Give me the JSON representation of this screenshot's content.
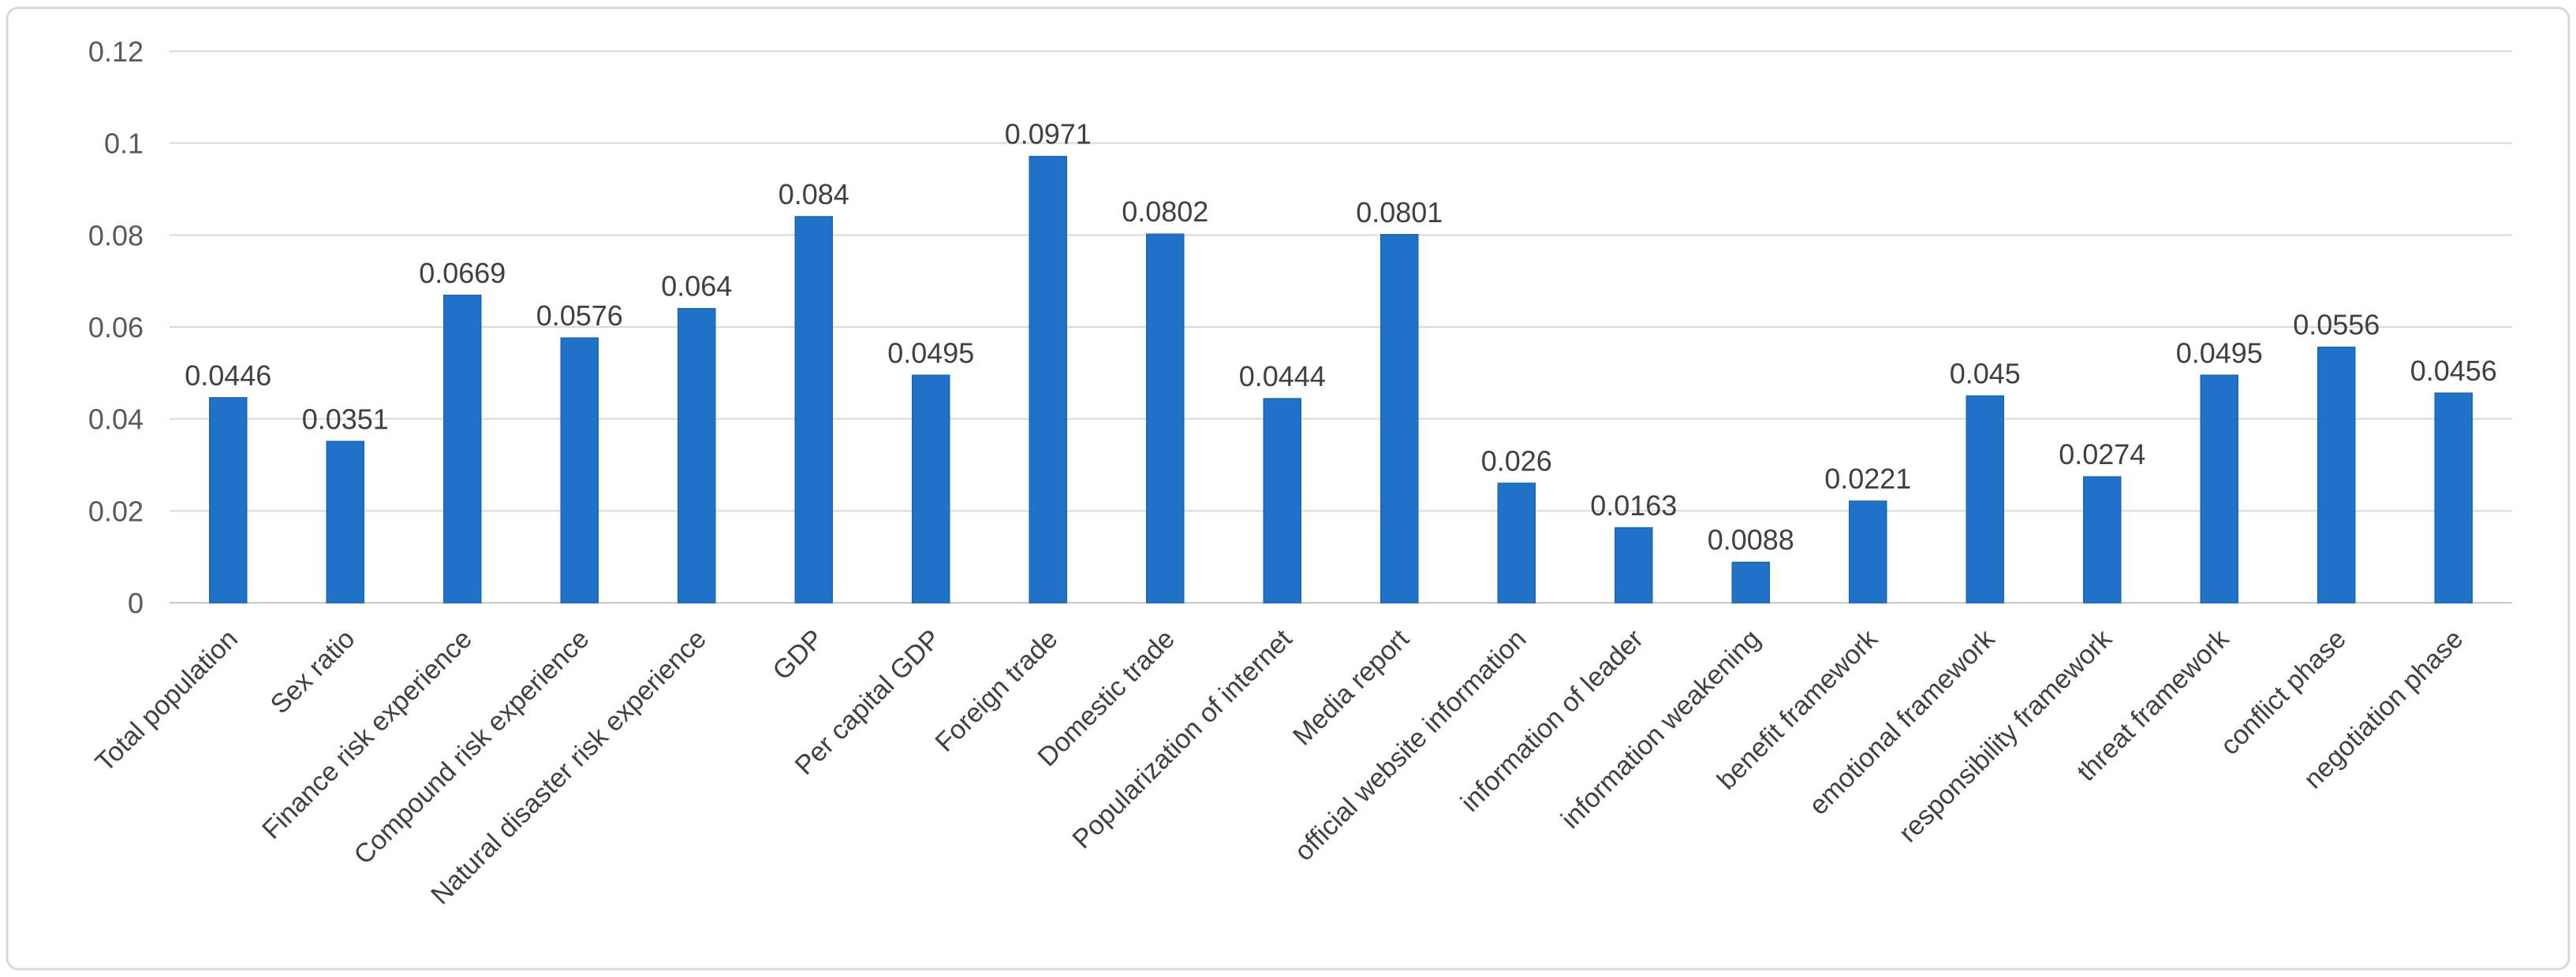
{
  "chart_data": {
    "type": "bar",
    "title": "",
    "xlabel": "",
    "ylabel": "",
    "categories": [
      "Total population",
      "Sex ratio",
      "Finance risk experience",
      "Compound risk experience",
      "Natural disaster risk experience",
      "GDP",
      "Per capital GDP",
      "Foreign trade",
      "Domestic trade",
      "Popularization of internet",
      "Media report",
      "official website information",
      "information of leader",
      "information weakening",
      "benefit framework",
      "emotional framework",
      "responsibility framework",
      "threat framework",
      "conflict phase",
      "negotiation phase"
    ],
    "values": [
      0.0446,
      0.0351,
      0.0669,
      0.0576,
      0.064,
      0.084,
      0.0495,
      0.0971,
      0.0802,
      0.0444,
      0.0801,
      0.026,
      0.0163,
      0.0088,
      0.0221,
      0.045,
      0.0274,
      0.0495,
      0.0556,
      0.0456
    ],
    "value_labels": [
      "0.0446",
      "0.0351",
      "0.0669",
      "0.0576",
      "0.064",
      "0.084",
      "0.0495",
      "0.0971",
      "0.0802",
      "0.0444",
      "0.0801",
      "0.026",
      "0.0163",
      "0.0088",
      "0.0221",
      "0.045",
      "0.0274",
      "0.0495",
      "0.0556",
      "0.0456"
    ],
    "ylim": [
      0,
      0.12
    ],
    "yticks": [
      0,
      0.02,
      0.04,
      0.06,
      0.08,
      0.1,
      0.12
    ],
    "ytick_labels": [
      "0",
      "0.02",
      "0.04",
      "0.06",
      "0.08",
      "0.1",
      "0.12"
    ],
    "grid": true,
    "legend_position": "none",
    "category_label_rotation_deg": 45,
    "colors": {
      "bar_fill": "#1F72C8",
      "bar_edge": "#1766BB",
      "gridline": "#D9D9D9",
      "axis_line": "#C9C9C9",
      "ytick_label": "#595959",
      "data_label": "#404040",
      "category_label": "#404040",
      "frame_border": "#D8D8D8",
      "background": "#FFFFFF"
    }
  }
}
